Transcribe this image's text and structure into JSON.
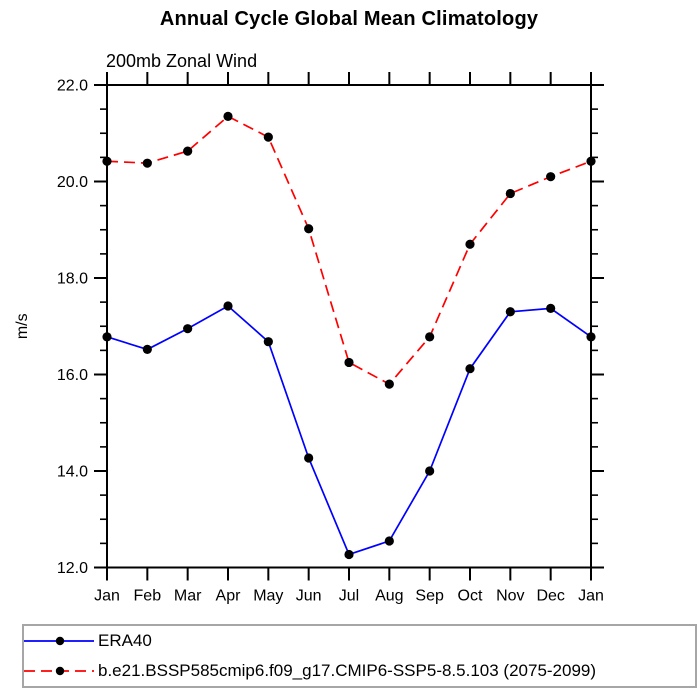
{
  "chart_data": {
    "type": "line",
    "title": "Annual Cycle Global Mean Climatology",
    "subtitle": "200mb Zonal Wind",
    "ylabel": "m/s",
    "ylim": [
      12.0,
      22.0
    ],
    "y_tick_values": [
      12,
      14,
      16,
      18,
      20,
      22
    ],
    "y_tick_labels": [
      "12.0",
      "14.0",
      "16.0",
      "18.0",
      "20.0",
      "22.0"
    ],
    "y_minor_step": 0.5,
    "x_tick_labels": [
      "Jan",
      "Feb",
      "Mar",
      "Apr",
      "May",
      "Jun",
      "Jul",
      "Aug",
      "Sep",
      "Oct",
      "Nov",
      "Dec",
      "Jan"
    ],
    "grid": false,
    "legend_position": "bottom",
    "marker_color": "#000000",
    "axis_color": "#000000",
    "legend_border_color": "#a6a6a6",
    "series": [
      {
        "name": "ERA40",
        "color": "#0000ff",
        "style": "solid",
        "marker": "black-dot",
        "values": [
          16.78,
          16.52,
          16.95,
          17.42,
          16.68,
          14.27,
          12.27,
          12.55,
          14.0,
          16.12,
          17.3,
          17.37,
          16.78
        ]
      },
      {
        "name": "b.e21.BSSP585cmip6.f09_g17.CMIP6-SSP5-8.5.103 (2075-2099)",
        "color": "#ff0000",
        "style": "dashed",
        "marker": "black-dot",
        "values": [
          20.42,
          20.38,
          20.63,
          21.35,
          20.92,
          19.02,
          16.25,
          15.8,
          16.78,
          18.7,
          19.75,
          20.1,
          20.42
        ]
      }
    ]
  }
}
